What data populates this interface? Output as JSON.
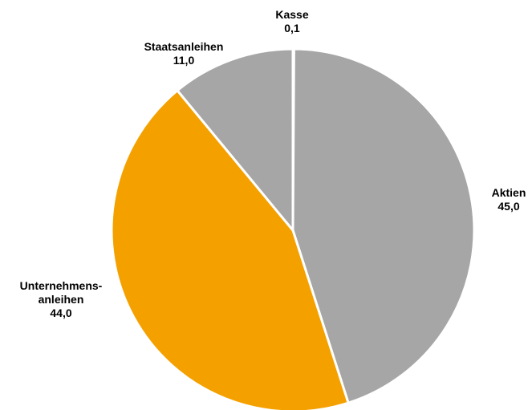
{
  "chart_data": {
    "type": "pie",
    "categories": [
      "Kasse",
      "Aktien",
      "Unternehmens-\nanleihen",
      "Staatsanleihen"
    ],
    "values": [
      0.1,
      45.0,
      44.0,
      11.0
    ],
    "value_labels": [
      "0,1",
      "45,0",
      "44,0",
      "11,0"
    ],
    "colors": [
      "#a6a6a6",
      "#a6a6a6",
      "#f4a100",
      "#a6a6a6"
    ]
  }
}
